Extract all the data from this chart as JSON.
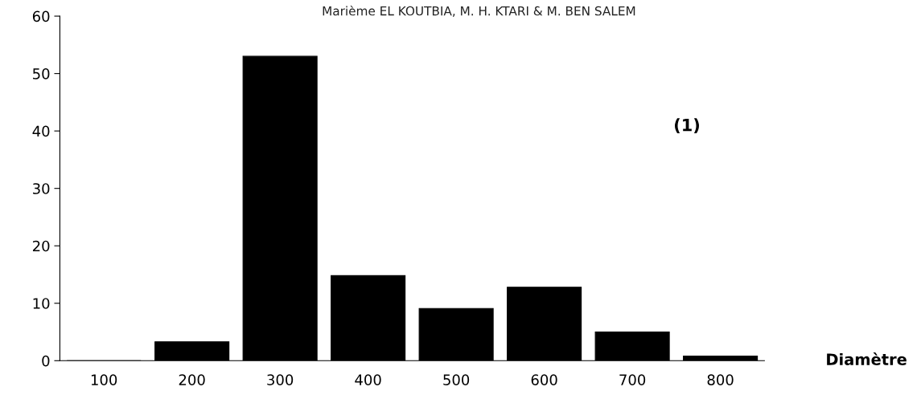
{
  "chart_data": {
    "type": "bar",
    "title": "Marième EL KOUTBIA, M. H. KTARI & M. BEN SALEM",
    "xlabel": "Diamètre",
    "categories": [
      "100",
      "200",
      "300",
      "400",
      "500",
      "600",
      "700",
      "800"
    ],
    "values": [
      0,
      3.3,
      53,
      14.8,
      9.1,
      12.8,
      5,
      0.8
    ],
    "color": "#000000",
    "ylim": [
      0,
      60
    ],
    "yticks": [
      0,
      10,
      20,
      30,
      40,
      50,
      60
    ],
    "annotations": [
      "(1)"
    ],
    "grid": false,
    "legend": false
  }
}
